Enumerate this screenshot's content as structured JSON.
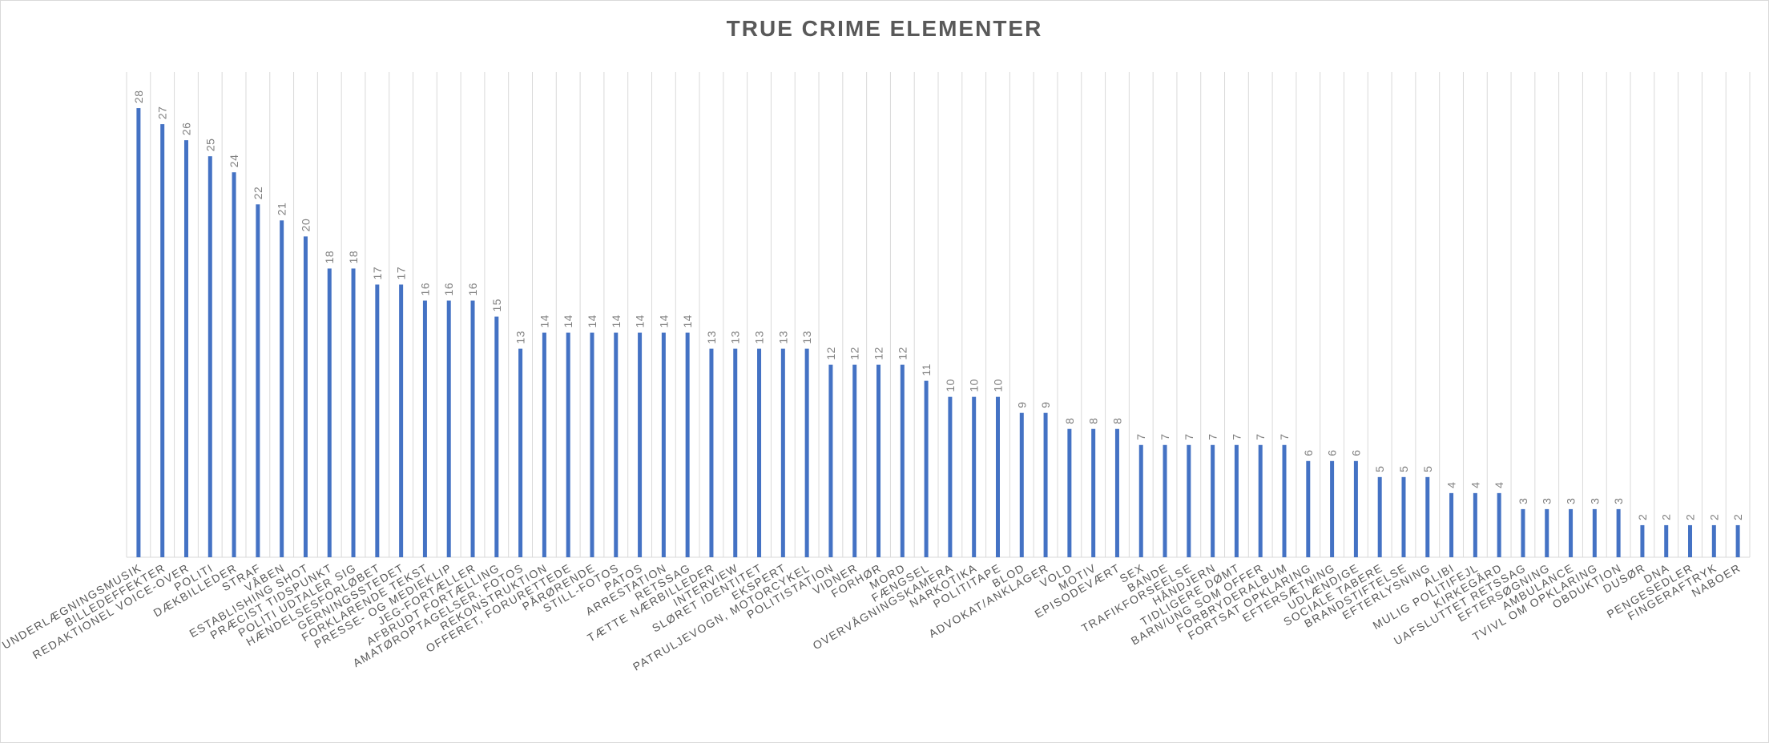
{
  "chart_data": {
    "type": "bar",
    "title": "TRUE CRIME ELEMENTER",
    "xlabel": "",
    "ylabel": "",
    "ylim": [
      0,
      30
    ],
    "grid": "vertical",
    "legend": "none",
    "bar_color": "#4472c4",
    "grid_color": "#d9d9d9",
    "categories": [
      "UNDERLÆGNINGSMUSIK",
      "BILLEDEFFEKTER",
      "REDAKTIONEL VOICE-OVER",
      "POLITI",
      "DÆKBILLEDER",
      "STRAF",
      "VÅBEN",
      "ESTABLISHING SHOT",
      "PRÆCIST TIDSPUNKT",
      "POLITI UDTALER SIG",
      "HÆNDELSESFORLØBET",
      "GERNINGSSTEDET",
      "FORKLARENDE TEKST",
      "PRESSE- OG MEDIEKLIP",
      "JEG-FORTÆLLER",
      "AFBRUDT FORTÆLLING",
      "AMATØROPTAGELSER, FOTOS",
      "REKONSTRUKTION",
      "OFFERET, FORURETTEDE",
      "PÅRØRENDE",
      "STILL-FOTOS",
      "PATOS",
      "ARRESTATION",
      "RETSSAG",
      "TÆTTE NÆRBILLEDER",
      "INTERVIEW",
      "SLØRET IDENTITET",
      "EKSPERT",
      "PATRULJEVOGN, MOTORCYKEL",
      "POLITISTATION",
      "VIDNER",
      "FORHØR",
      "MORD",
      "FÆNGSEL",
      "OVERVÅGNINGSKAMERA",
      "NARKOTIKA",
      "POLITITAPE",
      "BLOD",
      "ADVOKAT/ANKLAGER",
      "VOLD",
      "MOTIV",
      "EPISODEVÆRT",
      "SEX",
      "BANDE",
      "TRAFIKFORSEELSE",
      "HÅNDJERN",
      "TIDLIGERE DØMT",
      "BARN/UNG SOM OFFER",
      "FORBRYDERALBUM",
      "FORTSAT OPKLARING",
      "EFTERSÆTNING",
      "UDLÆNDIGE",
      "SOCIALE TABERE",
      "BRANDSTIFTELSE",
      "EFTERLYSNING",
      "ALIBI",
      "MULIG POLITIFEJL",
      "KIRKEGÅRD",
      "UAFSLUTTET RETSSAG",
      "EFTERSØGNING",
      "AMBULANCE",
      "TVIVL OM OPKLARING",
      "OBDUKTION",
      "DUSØR",
      "DNA",
      "PENGESEDLER",
      "FINGERAFTRYK",
      "NABOER"
    ],
    "values": [
      28,
      27,
      26,
      25,
      24,
      22,
      21,
      20,
      18,
      18,
      17,
      17,
      16,
      16,
      16,
      15,
      13,
      14,
      14,
      14,
      14,
      14,
      14,
      14,
      13,
      13,
      13,
      13,
      13,
      12,
      12,
      12,
      12,
      11,
      10,
      10,
      10,
      9,
      9,
      8,
      8,
      8,
      7,
      7,
      7,
      7,
      7,
      7,
      7,
      6,
      6,
      6,
      5,
      5,
      5,
      4,
      4,
      4,
      3,
      3,
      3,
      3,
      3,
      2,
      2,
      2,
      2,
      2
    ]
  }
}
